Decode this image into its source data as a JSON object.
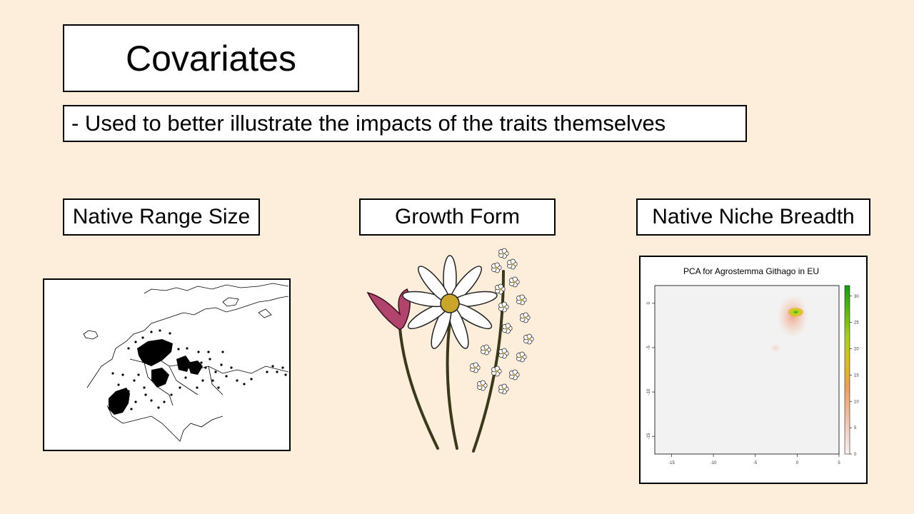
{
  "slide": {
    "title": "Covariates",
    "subtitle": "- Used to better illustrate the impacts of the traits themselves",
    "covariates": [
      {
        "label": "Native Range Size"
      },
      {
        "label": "Growth Form"
      },
      {
        "label": "Native Niche Breadth"
      }
    ]
  },
  "colors": {
    "background": "#fdeedb",
    "box_fill": "#ffffff",
    "box_border": "#000000"
  },
  "images": {
    "range_map": {
      "icon": "europe-occurrence-map"
    },
    "growth_form": {
      "icon": "wildflower-illustration"
    }
  },
  "chart_data": {
    "type": "heatmap",
    "title": "PCA for Agrostemma Githago in EU",
    "xlim": [
      -17,
      5
    ],
    "ylim": [
      -17,
      2
    ],
    "x_ticks": [
      -15,
      -10,
      -5,
      0,
      5
    ],
    "y_ticks": [
      0,
      -5,
      -10,
      -15
    ],
    "hotspot": {
      "x": 0,
      "y": -1,
      "peak_density": 32
    },
    "colorbar": {
      "ticks": [
        0,
        5,
        10,
        15,
        20,
        25,
        30
      ],
      "range": [
        0,
        32
      ]
    },
    "grid": false
  }
}
